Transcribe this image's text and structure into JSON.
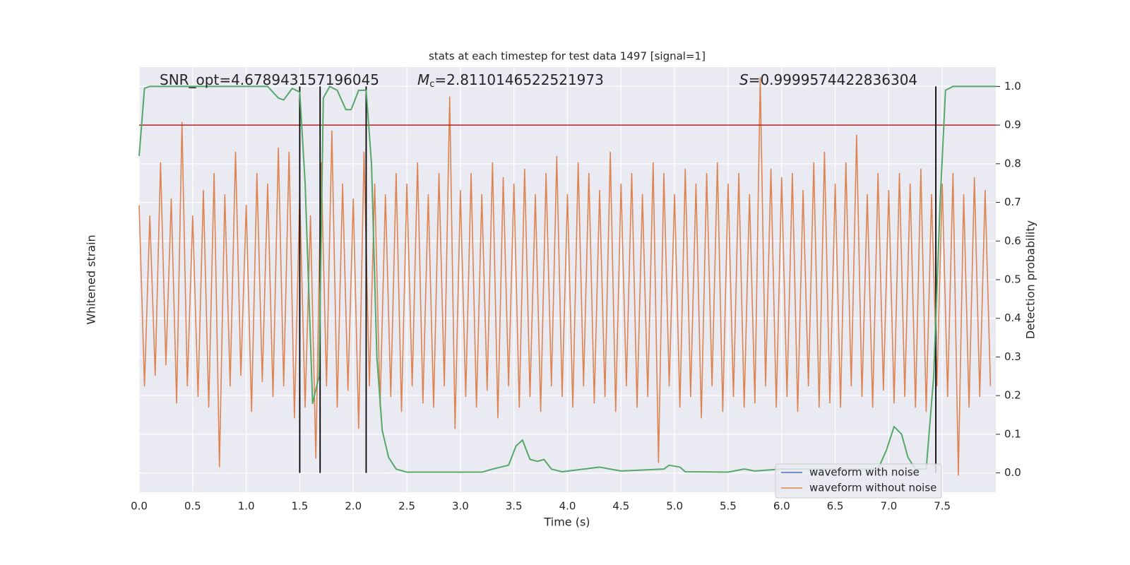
{
  "chart_data": {
    "type": "line",
    "title": "stats at each timestep for test data 1497 [signal=1]",
    "xlabel": "Time (s)",
    "ylabel": "Whitened strain",
    "y2label": "Detection probability",
    "annotations": [
      {
        "text": "SNR_opt=4.678943157196045"
      },
      {
        "italic": "M",
        "sub": "c",
        "text": "=2.8110146522521973"
      },
      {
        "italic": "S",
        "text": "=0.9999574422836304"
      }
    ],
    "xlim": [
      0,
      8
    ],
    "xticks": [
      {
        "value": 0,
        "label": "0.0"
      },
      0.5,
      {
        "value": 1,
        "label": "1.0"
      },
      1.5,
      {
        "value": 2,
        "label": "2.0"
      },
      2.5,
      {
        "value": 3,
        "label": "3.0"
      },
      3.5,
      {
        "value": 4,
        "label": "4.0"
      },
      4.5,
      {
        "value": 5,
        "label": "5.0"
      },
      5.5,
      {
        "value": 6,
        "label": "6.0"
      },
      6.5,
      {
        "value": 7,
        "label": "7.0"
      },
      7.5
    ],
    "ylim": [
      -1,
      1
    ],
    "y2lim": [
      -0.05,
      1.05
    ],
    "y2ticks": [
      {
        "value": 0,
        "label": "0.0"
      },
      0.1,
      0.2,
      0.3,
      0.4,
      0.5,
      0.6,
      0.7,
      0.8,
      0.9,
      {
        "value": 1,
        "label": "1.0"
      }
    ],
    "grid": true,
    "legend": "lower right",
    "series": [
      {
        "name": "waveform with noise",
        "color": "#4c72b0"
      },
      {
        "name": "waveform without noise",
        "color": "#dd8452",
        "x": [
          0,
          0.05,
          0.1,
          0.15,
          0.2,
          0.25,
          0.3,
          0.35,
          0.4,
          0.45,
          0.5,
          0.55,
          0.6,
          0.65,
          0.7,
          0.75,
          0.8,
          0.85,
          0.9,
          0.95,
          1,
          1.05,
          1.1,
          1.15,
          1.2,
          1.25,
          1.3,
          1.35,
          1.4,
          1.45,
          1.5,
          1.55,
          1.6,
          1.65,
          1.7,
          1.75,
          1.8,
          1.85,
          1.9,
          1.95,
          2,
          2.05,
          2.1,
          2.15,
          2.2,
          2.25,
          2.3,
          2.35,
          2.4,
          2.45,
          2.5,
          2.55,
          2.6,
          2.65,
          2.7,
          2.75,
          2.8,
          2.85,
          2.9,
          2.95,
          3,
          3.05,
          3.1,
          3.15,
          3.2,
          3.25,
          3.3,
          3.35,
          3.4,
          3.45,
          3.5,
          3.55,
          3.6,
          3.65,
          3.7,
          3.75,
          3.8,
          3.85,
          3.9,
          3.95,
          4,
          4.05,
          4.1,
          4.15,
          4.2,
          4.25,
          4.3,
          4.35,
          4.4,
          4.45,
          4.5,
          4.55,
          4.6,
          4.65,
          4.7,
          4.75,
          4.8,
          4.85,
          4.9,
          4.95,
          5,
          5.05,
          5.1,
          5.15,
          5.2,
          5.25,
          5.3,
          5.35,
          5.4,
          5.45,
          5.5,
          5.55,
          5.6,
          5.65,
          5.7,
          5.75,
          5.8,
          5.85,
          5.9,
          5.95,
          6,
          6.05,
          6.1,
          6.15,
          6.2,
          6.25,
          6.3,
          6.35,
          6.4,
          6.45,
          6.5,
          6.55,
          6.6,
          6.65,
          6.7,
          6.75,
          6.8,
          6.85,
          6.9,
          6.95,
          7,
          7.05,
          7.1,
          7.15,
          7.2,
          7.25,
          7.3,
          7.35,
          7.4,
          7.45,
          7.5,
          7.55,
          7.6,
          7.65,
          7.7,
          7.75,
          7.8,
          7.85,
          7.9,
          7.95
        ],
        "values": [
          0.35,
          -0.5,
          0.3,
          -0.45,
          0.55,
          -0.4,
          0.38,
          -0.58,
          0.74,
          -0.5,
          0.3,
          -0.55,
          0.42,
          -0.6,
          0.5,
          -0.88,
          0.4,
          -0.5,
          0.6,
          -0.45,
          0.35,
          -0.62,
          0.5,
          -0.48,
          0.45,
          -0.55,
          0.62,
          -0.5,
          0.6,
          -0.65,
          0.4,
          -0.6,
          0.3,
          -0.84,
          0.55,
          -0.5,
          0.7,
          -0.6,
          0.45,
          -0.52,
          0.38,
          -0.7,
          0.6,
          -0.5,
          0.45,
          -0.6,
          0.4,
          -0.55,
          0.5,
          -0.62,
          0.45,
          -0.5,
          0.55,
          -0.58,
          0.4,
          -0.6,
          0.5,
          -0.5,
          0.86,
          -0.7,
          0.42,
          -0.55,
          0.5,
          -0.6,
          0.4,
          -0.52,
          0.55,
          -0.65,
          0.48,
          -0.5,
          0.45,
          -0.6,
          0.52,
          -0.55,
          0.4,
          -0.62,
          0.5,
          -0.5,
          0.58,
          -0.55,
          0.4,
          -0.6,
          0.55,
          -0.5,
          0.5,
          -0.58,
          0.42,
          -0.55,
          0.6,
          -0.62,
          0.45,
          -0.5,
          0.5,
          -0.6,
          0.4,
          -0.55,
          0.55,
          -0.86,
          0.5,
          -0.5,
          0.4,
          -0.6,
          0.52,
          -0.55,
          0.45,
          -0.65,
          0.5,
          -0.5,
          0.55,
          -0.62,
          0.45,
          -0.55,
          0.5,
          -0.6,
          0.4,
          -0.58,
          0.95,
          -0.5,
          0.52,
          -0.6,
          0.48,
          -0.55,
          0.5,
          -0.62,
          0.42,
          -0.5,
          0.55,
          -0.6,
          0.6,
          -0.58,
          0.45,
          -0.6,
          0.55,
          -0.5,
          0.68,
          -0.55,
          0.4,
          -0.6,
          0.5,
          -0.52,
          0.42,
          -0.58,
          0.5,
          -0.55,
          0.45,
          -0.6,
          0.52,
          -0.62,
          0.4,
          -0.5,
          0.45,
          -0.55,
          0.5,
          -0.92,
          0.4,
          -0.6,
          0.48,
          -0.55,
          0.42,
          -0.5
        ]
      }
    ],
    "probability": {
      "color": "#55a868",
      "x": [
        0,
        0.05,
        0.1,
        0.5,
        1.2,
        1.3,
        1.35,
        1.43,
        1.5,
        1.55,
        1.62,
        1.68,
        1.72,
        1.78,
        1.85,
        1.93,
        1.98,
        2.05,
        2.12,
        2.17,
        2.22,
        2.27,
        2.33,
        2.4,
        2.5,
        3.2,
        3.3,
        3.45,
        3.52,
        3.58,
        3.65,
        3.72,
        3.78,
        3.85,
        3.95,
        4.3,
        4.5,
        4.9,
        4.95,
        5.05,
        5.1,
        5.5,
        5.65,
        5.75,
        6,
        6.9,
        6.98,
        7.05,
        7.12,
        7.18,
        7.25,
        7.35,
        7.42,
        7.48,
        7.53,
        7.6,
        8
      ],
      "values": [
        0.82,
        0.995,
        1,
        1,
        1,
        0.97,
        0.965,
        0.995,
        0.985,
        0.75,
        0.18,
        0.25,
        0.97,
        1,
        0.99,
        0.94,
        0.94,
        0.99,
        0.99,
        0.8,
        0.3,
        0.11,
        0.04,
        0.01,
        0.002,
        0.002,
        0.01,
        0.02,
        0.07,
        0.085,
        0.035,
        0.03,
        0.035,
        0.01,
        0.003,
        0.015,
        0.005,
        0.01,
        0.02,
        0.015,
        0.003,
        0.002,
        0.01,
        0.005,
        0.01,
        0.01,
        0.06,
        0.12,
        0.1,
        0.04,
        0.01,
        0.01,
        0.25,
        0.7,
        0.99,
        1,
        1
      ]
    },
    "threshold": {
      "value": 0.9,
      "color": "#b22222"
    },
    "events": {
      "color": "#000000",
      "x": [
        1.5,
        1.69,
        2.12,
        7.44
      ]
    }
  }
}
